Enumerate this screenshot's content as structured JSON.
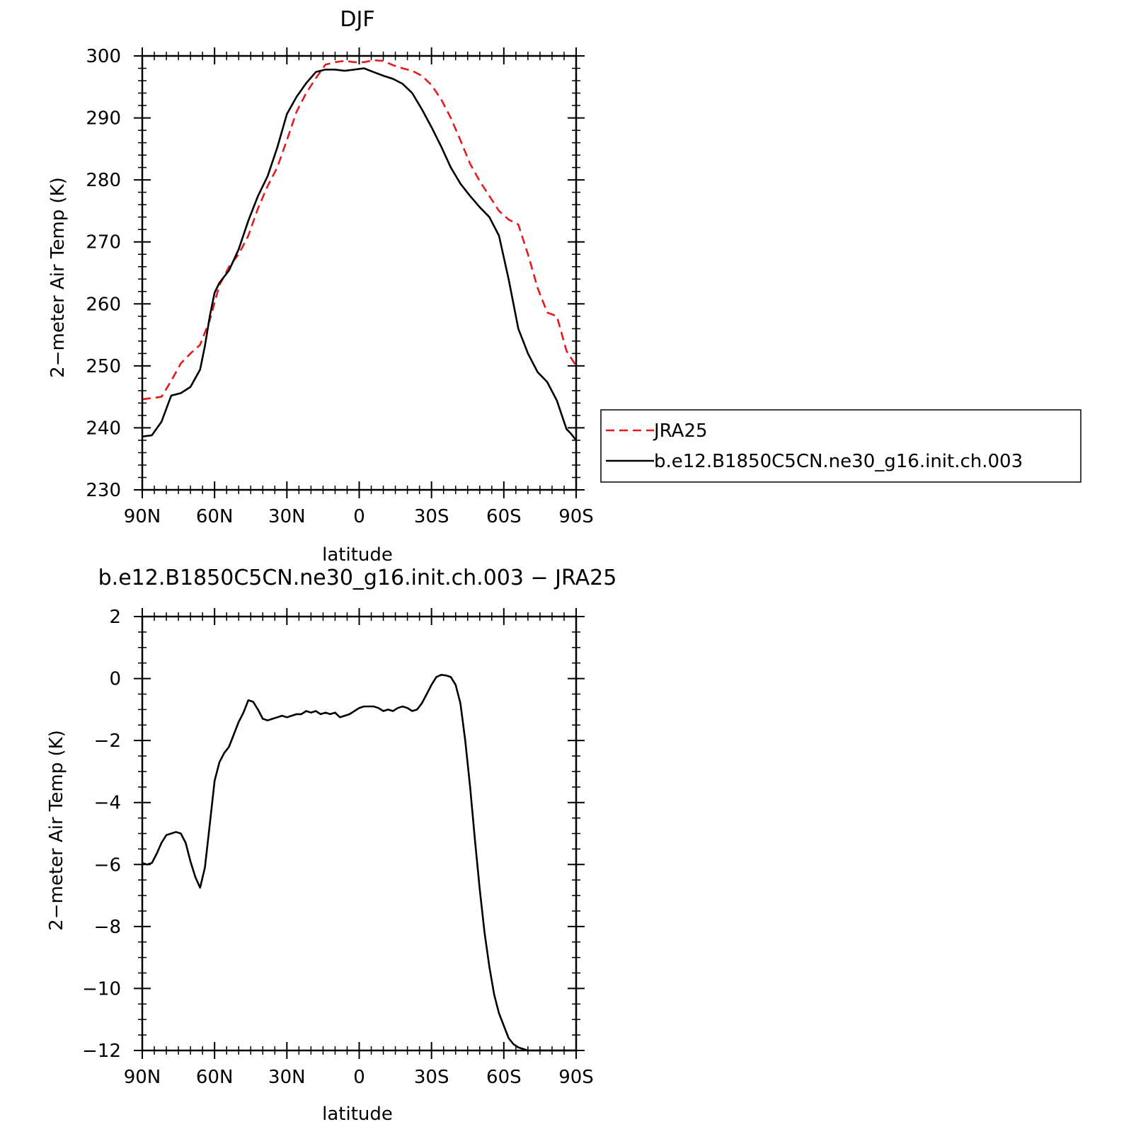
{
  "chart_data": [
    {
      "type": "line",
      "title": "DJF",
      "xlabel": "latitude",
      "ylabel": "2−meter Air Temp (K)",
      "xlim": [
        90,
        -90
      ],
      "ylim": [
        230,
        300
      ],
      "x_ticks": [
        {
          "value": 90,
          "label": "90N"
        },
        {
          "value": 60,
          "label": "60N"
        },
        {
          "value": 30,
          "label": "30N"
        },
        {
          "value": 0,
          "label": "0"
        },
        {
          "value": -30,
          "label": "30S"
        },
        {
          "value": -60,
          "label": "60S"
        },
        {
          "value": -90,
          "label": "90S"
        }
      ],
      "y_ticks": [
        {
          "value": 300,
          "label": "300"
        },
        {
          "value": 290,
          "label": "290"
        },
        {
          "value": 280,
          "label": "280"
        },
        {
          "value": 270,
          "label": "270"
        },
        {
          "value": 260,
          "label": "260"
        },
        {
          "value": 250,
          "label": "250"
        },
        {
          "value": 240,
          "label": "240"
        },
        {
          "value": 230,
          "label": "230"
        }
      ],
      "grid": false,
      "legend_position": "right-outside",
      "series": [
        {
          "name": "JRA25",
          "color": "#e41a1c",
          "dash": true,
          "x": [
            90,
            82,
            78,
            74,
            70,
            66,
            62,
            58,
            54,
            50,
            46,
            42,
            38,
            34,
            30,
            26,
            22,
            18,
            14,
            10,
            6,
            2,
            -2,
            -6,
            -10,
            -14,
            -18,
            -22,
            -26,
            -30,
            -34,
            -38,
            -42,
            -46,
            -50,
            -54,
            -58,
            -62,
            -66,
            -70,
            -74,
            -78,
            -82,
            -86,
            -90
          ],
          "y": [
            244.6,
            245.0,
            247.6,
            250.4,
            252.0,
            253.4,
            257.4,
            263.0,
            266.0,
            268.0,
            271.0,
            275.4,
            279.0,
            282.0,
            286.4,
            291.0,
            294.0,
            296.4,
            298.6,
            299.0,
            299.2,
            299.0,
            299.0,
            299.3,
            299.2,
            298.5,
            298.0,
            297.6,
            296.8,
            295.3,
            293.0,
            290.0,
            286.4,
            282.6,
            279.8,
            277.4,
            275.0,
            273.6,
            272.8,
            268.0,
            262.6,
            258.6,
            258.0,
            252.4,
            250.0
          ]
        },
        {
          "name": "b.e12.B1850C5CN.ne30_g16.init.ch.003",
          "color": "#000000",
          "dash": false,
          "x": [
            90,
            86,
            82,
            78,
            74,
            70,
            66,
            64,
            62,
            60,
            58,
            54,
            50,
            46,
            42,
            38,
            34,
            30,
            26,
            22,
            18,
            14,
            10,
            6,
            2,
            -2,
            -6,
            -10,
            -14,
            -18,
            -22,
            -26,
            -30,
            -34,
            -38,
            -42,
            -46,
            -50,
            -54,
            -58,
            -62,
            -66,
            -70,
            -74,
            -78,
            -82,
            -86,
            -88,
            -90
          ],
          "y": [
            238.6,
            238.8,
            241.0,
            245.2,
            245.6,
            246.6,
            249.4,
            253.2,
            258.0,
            261.8,
            263.4,
            265.4,
            268.8,
            273.4,
            277.4,
            280.6,
            285.2,
            290.6,
            293.4,
            295.6,
            297.4,
            297.8,
            297.8,
            297.6,
            297.8,
            298.0,
            297.4,
            296.8,
            296.3,
            295.5,
            294.0,
            291.4,
            288.5,
            285.4,
            282.0,
            279.4,
            277.4,
            275.6,
            274.0,
            271.0,
            264.0,
            256.0,
            252.0,
            249.0,
            247.4,
            244.4,
            239.8,
            239.0,
            238.0
          ]
        }
      ]
    },
    {
      "type": "line",
      "title": "b.e12.B1850C5CN.ne30_g16.init.ch.003 − JRA25",
      "xlabel": "latitude",
      "ylabel": "2−meter Air Temp (K)",
      "xlim": [
        90,
        -90
      ],
      "ylim": [
        -12,
        2
      ],
      "x_ticks": [
        {
          "value": 90,
          "label": "90N"
        },
        {
          "value": 60,
          "label": "60N"
        },
        {
          "value": 30,
          "label": "30N"
        },
        {
          "value": 0,
          "label": "0"
        },
        {
          "value": -30,
          "label": "30S"
        },
        {
          "value": -60,
          "label": "60S"
        },
        {
          "value": -90,
          "label": "90S"
        }
      ],
      "y_ticks": [
        {
          "value": 2,
          "label": "2"
        },
        {
          "value": 0,
          "label": "0"
        },
        {
          "value": -2,
          "label": "−2"
        },
        {
          "value": -4,
          "label": "−4"
        },
        {
          "value": -6,
          "label": "−6"
        },
        {
          "value": -8,
          "label": "−8"
        },
        {
          "value": -10,
          "label": "−10"
        },
        {
          "value": -12,
          "label": "−12"
        }
      ],
      "grid": false,
      "series": [
        {
          "color": "#000000",
          "dash": false,
          "x": [
            90,
            88,
            86,
            84,
            82,
            80,
            78,
            76,
            74,
            72,
            70,
            68,
            66,
            64,
            62,
            60,
            58,
            56,
            54,
            52,
            50,
            48,
            46,
            44,
            42,
            40,
            38,
            36,
            34,
            32,
            30,
            28,
            26,
            24,
            22,
            20,
            18,
            16,
            14,
            12,
            10,
            8,
            6,
            4,
            2,
            0,
            -2,
            -4,
            -6,
            -8,
            -10,
            -12,
            -14,
            -16,
            -18,
            -20,
            -22,
            -24,
            -26,
            -28,
            -30,
            -32,
            -34,
            -36,
            -38,
            -40,
            -42,
            -44,
            -46,
            -48,
            -50,
            -52,
            -54,
            -56,
            -58,
            -60,
            -62,
            -64,
            -66,
            -68,
            -70,
            -72,
            -74,
            -76,
            -78,
            -80,
            -82,
            -84,
            -86,
            -88,
            -90
          ],
          "y": [
            -5.95,
            -6.0,
            -5.95,
            -5.65,
            -5.3,
            -5.05,
            -5.0,
            -4.95,
            -5.0,
            -5.3,
            -5.9,
            -6.4,
            -6.75,
            -6.1,
            -4.7,
            -3.3,
            -2.7,
            -2.4,
            -2.2,
            -1.8,
            -1.4,
            -1.1,
            -0.7,
            -0.75,
            -1.0,
            -1.3,
            -1.35,
            -1.3,
            -1.25,
            -1.2,
            -1.25,
            -1.2,
            -1.15,
            -1.15,
            -1.05,
            -1.1,
            -1.05,
            -1.15,
            -1.1,
            -1.15,
            -1.1,
            -1.25,
            -1.2,
            -1.15,
            -1.05,
            -0.95,
            -0.9,
            -0.9,
            -0.9,
            -0.95,
            -1.05,
            -1.0,
            -1.05,
            -0.95,
            -0.9,
            -0.95,
            -1.05,
            -1.0,
            -0.8,
            -0.5,
            -0.2,
            0.05,
            0.12,
            0.1,
            0.05,
            -0.2,
            -0.8,
            -2.0,
            -3.5,
            -5.2,
            -6.8,
            -8.2,
            -9.3,
            -10.2,
            -10.8,
            -11.2,
            -11.6,
            -11.8,
            -11.9,
            -11.95,
            -12.0,
            -12.0,
            -12.0,
            -12.0,
            -12.0,
            -12.0,
            -12.0,
            -12.0,
            -12.0,
            -12.0,
            -12.0
          ]
        }
      ]
    }
  ]
}
